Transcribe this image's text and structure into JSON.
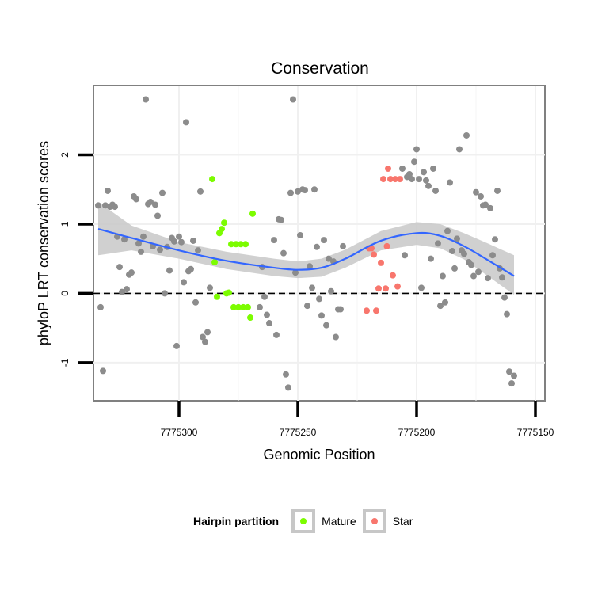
{
  "chart_data": {
    "type": "scatter",
    "title": "Conservation",
    "xlabel": "Genomic Position",
    "ylabel": "phyloP LRT conservation scores",
    "x_reversed": true,
    "xlim": [
      7775336,
      7775146
    ],
    "ylim": [
      -1.55,
      3.0
    ],
    "x_ticks": [
      7775300,
      7775250,
      7775200,
      7775150
    ],
    "x_tick_labels": [
      "7775300",
      "7775250",
      "7775200",
      "7775150"
    ],
    "y_ticks": [
      -1,
      0,
      1,
      2
    ],
    "y_tick_labels": [
      "-1",
      "0",
      "1",
      "2"
    ],
    "grid": true,
    "reference_line": {
      "y": 0,
      "style": "dashed"
    },
    "legend": {
      "title": "Hairpin partition",
      "position": "bottom",
      "entries": [
        {
          "label": "Mature",
          "color": "#7cfc00"
        },
        {
          "label": "Star",
          "color": "#f8766d"
        }
      ]
    },
    "colors": {
      "other": "#8c8c8c",
      "mature": "#7cfc00",
      "star": "#f8766d",
      "smooth_line": "#3366ff",
      "ribbon": "#c8c8c8"
    },
    "series": [
      {
        "name": "Mature",
        "color": "#7cfc00",
        "points": [
          [
            7775286,
            1.65
          ],
          [
            7775285,
            0.45
          ],
          [
            7775284,
            -0.05
          ],
          [
            7775283,
            0.87
          ],
          [
            7775282,
            0.93
          ],
          [
            7775281,
            1.02
          ],
          [
            7775280,
            0.0
          ],
          [
            7775279,
            0.01
          ],
          [
            7775278,
            0.71
          ],
          [
            7775277,
            -0.2
          ],
          [
            7775276,
            0.71
          ],
          [
            7775275,
            -0.2
          ],
          [
            7775274,
            0.71
          ],
          [
            7775273,
            -0.2
          ],
          [
            7775272,
            0.71
          ],
          [
            7775271,
            -0.2
          ],
          [
            7775270,
            -0.35
          ],
          [
            7775269,
            1.15
          ]
        ]
      },
      {
        "name": "Star",
        "color": "#f8766d",
        "points": [
          [
            7775221,
            -0.25
          ],
          [
            7775220,
            0.65
          ],
          [
            7775219,
            0.65
          ],
          [
            7775218,
            0.56
          ],
          [
            7775217,
            -0.25
          ],
          [
            7775216,
            0.07
          ],
          [
            7775215,
            0.44
          ],
          [
            7775214,
            1.65
          ],
          [
            7775213,
            0.07
          ],
          [
            7775212,
            1.8
          ],
          [
            7775211,
            1.65
          ],
          [
            7775210,
            0.26
          ],
          [
            7775209,
            1.65
          ],
          [
            7775208,
            0.1
          ],
          [
            7775207,
            1.65
          ],
          [
            7775212.5,
            0.68
          ]
        ]
      },
      {
        "points": [
          [
            7775334,
            1.27
          ],
          [
            7775333,
            -0.2
          ],
          [
            7775332,
            -1.12
          ],
          [
            7775331,
            1.27
          ],
          [
            7775330,
            1.48
          ],
          [
            7775329,
            1.25
          ],
          [
            7775328,
            1.28
          ],
          [
            7775327,
            1.25
          ],
          [
            7775326,
            0.82
          ],
          [
            7775325,
            0.38
          ],
          [
            7775324,
            0.02
          ],
          [
            7775323,
            0.78
          ],
          [
            7775322,
            0.06
          ],
          [
            7775321,
            0.27
          ],
          [
            7775320,
            0.3
          ],
          [
            7775319,
            1.4
          ],
          [
            7775318,
            1.36
          ],
          [
            7775317,
            0.72
          ],
          [
            7775316,
            0.6
          ],
          [
            7775315,
            0.82
          ],
          [
            7775314,
            2.8
          ],
          [
            7775313,
            1.29
          ],
          [
            7775312,
            1.32
          ],
          [
            7775311,
            0.68
          ],
          [
            7775310,
            1.28
          ],
          [
            7775309,
            1.12
          ],
          [
            7775308,
            0.63
          ],
          [
            7775307,
            1.45
          ],
          [
            7775306,
            0.0
          ],
          [
            7775305,
            0.67
          ],
          [
            7775304,
            0.33
          ],
          [
            7775303,
            0.8
          ],
          [
            7775302,
            0.75
          ],
          [
            7775301,
            -0.76
          ],
          [
            7775300,
            0.82
          ],
          [
            7775299,
            0.74
          ],
          [
            7775298,
            0.16
          ],
          [
            7775297,
            2.47
          ],
          [
            7775296,
            0.32
          ],
          [
            7775295,
            0.35
          ],
          [
            7775294,
            0.76
          ],
          [
            7775293,
            -0.13
          ],
          [
            7775292,
            0.62
          ],
          [
            7775291,
            1.47
          ],
          [
            7775290,
            -0.63
          ],
          [
            7775289,
            -0.7
          ],
          [
            7775288,
            -0.56
          ],
          [
            7775287,
            0.08
          ],
          [
            7775266,
            -0.2
          ],
          [
            7775265,
            0.38
          ],
          [
            7775264,
            -0.05
          ],
          [
            7775263,
            -0.31
          ],
          [
            7775262,
            -0.43
          ],
          [
            7775260,
            0.77
          ],
          [
            7775259,
            -0.6
          ],
          [
            7775258,
            1.07
          ],
          [
            7775257,
            1.06
          ],
          [
            7775256,
            0.58
          ],
          [
            7775255,
            -1.17
          ],
          [
            7775254,
            -1.36
          ],
          [
            7775253,
            1.45
          ],
          [
            7775252,
            2.8
          ],
          [
            7775251,
            0.3
          ],
          [
            7775250,
            1.47
          ],
          [
            7775249,
            0.84
          ],
          [
            7775248,
            1.5
          ],
          [
            7775247,
            1.49
          ],
          [
            7775246,
            -0.18
          ],
          [
            7775245,
            0.39
          ],
          [
            7775244,
            0.08
          ],
          [
            7775243,
            1.5
          ],
          [
            7775242,
            0.67
          ],
          [
            7775241,
            -0.08
          ],
          [
            7775240,
            -0.32
          ],
          [
            7775239,
            0.77
          ],
          [
            7775238,
            -0.46
          ],
          [
            7775237,
            0.5
          ],
          [
            7775236,
            0.03
          ],
          [
            7775235,
            0.46
          ],
          [
            7775234,
            -0.63
          ],
          [
            7775233,
            -0.23
          ],
          [
            7775232,
            -0.23
          ],
          [
            7775231,
            0.68
          ],
          [
            7775206,
            1.8
          ],
          [
            7775205,
            0.55
          ],
          [
            7775204,
            1.68
          ],
          [
            7775203,
            1.72
          ],
          [
            7775202,
            1.65
          ],
          [
            7775201,
            1.9
          ],
          [
            7775200,
            2.08
          ],
          [
            7775199,
            1.65
          ],
          [
            7775198,
            0.08
          ],
          [
            7775197,
            1.75
          ],
          [
            7775196,
            1.63
          ],
          [
            7775195,
            1.55
          ],
          [
            7775194,
            0.5
          ],
          [
            7775193,
            1.8
          ],
          [
            7775192,
            1.48
          ],
          [
            7775191,
            0.72
          ],
          [
            7775190,
            -0.18
          ],
          [
            7775189,
            0.25
          ],
          [
            7775188,
            -0.13
          ],
          [
            7775187,
            0.9
          ],
          [
            7775186,
            1.6
          ],
          [
            7775185,
            0.61
          ],
          [
            7775184,
            0.36
          ],
          [
            7775183,
            0.79
          ],
          [
            7775182,
            2.08
          ],
          [
            7775181,
            0.62
          ],
          [
            7775180,
            0.57
          ],
          [
            7775179,
            2.28
          ],
          [
            7775178,
            0.45
          ],
          [
            7775177,
            0.41
          ],
          [
            7775176,
            0.25
          ],
          [
            7775175,
            1.46
          ],
          [
            7775174,
            0.31
          ],
          [
            7775173,
            1.4
          ],
          [
            7775172,
            1.27
          ],
          [
            7775171,
            1.28
          ],
          [
            7775170,
            0.22
          ],
          [
            7775169,
            1.23
          ],
          [
            7775168,
            0.55
          ],
          [
            7775167,
            0.78
          ],
          [
            7775166,
            1.48
          ],
          [
            7775165,
            0.36
          ],
          [
            7775164,
            0.23
          ],
          [
            7775163,
            -0.06
          ],
          [
            7775162,
            -0.3
          ],
          [
            7775161,
            -1.13
          ],
          [
            7775160,
            -1.3
          ],
          [
            7775159,
            -1.19
          ]
        ]
      }
    ],
    "smooth": {
      "x": [
        7775334,
        7775320,
        7775300,
        7775280,
        7775260,
        7775250,
        7775240,
        7775230,
        7775215,
        7775200,
        7775190,
        7775180,
        7775170,
        7775159
      ],
      "y": [
        0.93,
        0.8,
        0.62,
        0.47,
        0.37,
        0.34,
        0.37,
        0.5,
        0.76,
        0.87,
        0.83,
        0.68,
        0.48,
        0.25
      ],
      "lower": [
        0.55,
        0.62,
        0.5,
        0.35,
        0.25,
        0.22,
        0.24,
        0.37,
        0.62,
        0.7,
        0.65,
        0.49,
        0.25,
        -0.02
      ],
      "upper": [
        1.32,
        0.98,
        0.74,
        0.6,
        0.5,
        0.46,
        0.5,
        0.63,
        0.9,
        1.03,
        1.0,
        0.87,
        0.72,
        0.55
      ]
    }
  }
}
